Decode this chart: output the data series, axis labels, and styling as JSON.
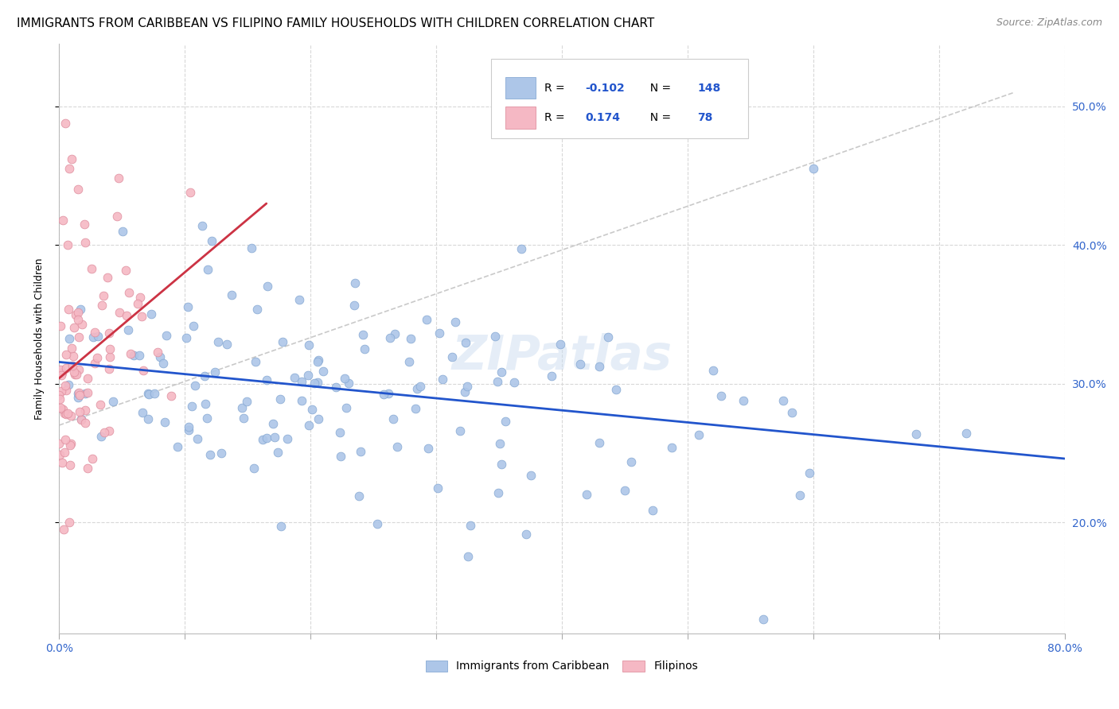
{
  "title": "IMMIGRANTS FROM CARIBBEAN VS FILIPINO FAMILY HOUSEHOLDS WITH CHILDREN CORRELATION CHART",
  "source": "Source: ZipAtlas.com",
  "ylabel": "Family Households with Children",
  "watermark": "ZIPatlas",
  "legend_blue_r": "-0.102",
  "legend_blue_n": "148",
  "legend_pink_r": "0.174",
  "legend_pink_n": "78",
  "blue_color": "#adc6e8",
  "pink_color": "#f5b8c4",
  "blue_line_color": "#2255cc",
  "pink_line_color": "#cc3344",
  "grid_color": "#d8d8d8",
  "background": "#ffffff",
  "title_fontsize": 11,
  "source_fontsize": 9,
  "ylabel_fontsize": 9,
  "tick_color_right": "#3366cc",
  "xlim": [
    0.0,
    0.8
  ],
  "ylim": [
    0.12,
    0.545
  ],
  "yticks_right": [
    0.2,
    0.3,
    0.4,
    0.5
  ],
  "ytick_labels_right": [
    "20.0%",
    "30.0%",
    "40.0%",
    "50.0%"
  ]
}
